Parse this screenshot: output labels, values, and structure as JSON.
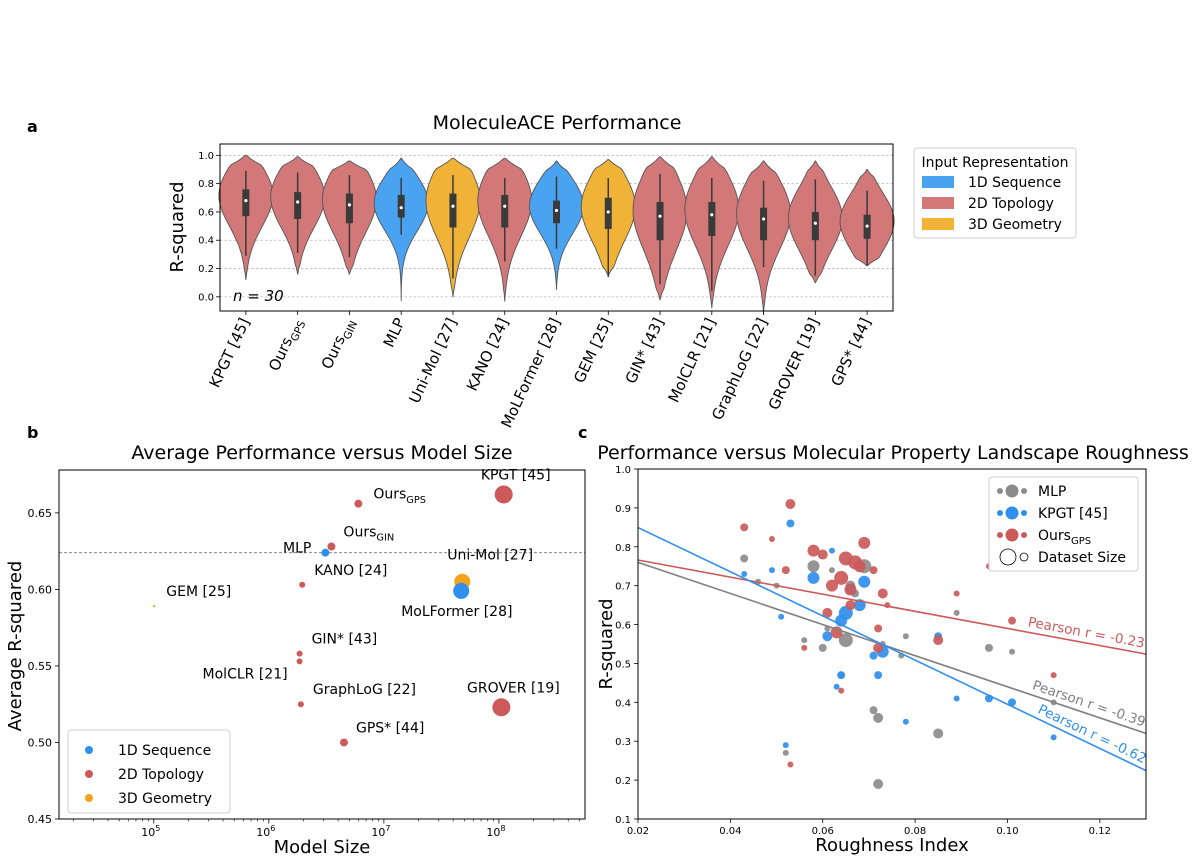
{
  "panel_a": {
    "letter": "a",
    "title": "MoleculeACE Performance",
    "ylabel": "R-squared",
    "annotation": "n = 30",
    "legend_title": "Input Representation",
    "legend": [
      {
        "label": "1D Sequence",
        "color": "#4aa3f0"
      },
      {
        "label": "2D Topology",
        "color": "#d37878"
      },
      {
        "label": "3D Geometry",
        "color": "#f1b238"
      }
    ],
    "yticks": [
      "0.0",
      "0.2",
      "0.4",
      "0.6",
      "0.8",
      "1.0"
    ]
  },
  "panel_b": {
    "letter": "b",
    "title": "Average Performance versus Model Size",
    "xlabel": "Model Size",
    "ylabel": "Average R-squared",
    "yticks": [
      "0.45",
      "0.50",
      "0.55",
      "0.60",
      "0.65"
    ],
    "xticks": [
      {
        "base": "10",
        "exp": "5",
        "v": 100000
      },
      {
        "base": "10",
        "exp": "6",
        "v": 1000000
      },
      {
        "base": "10",
        "exp": "7",
        "v": 10000000
      },
      {
        "base": "10",
        "exp": "8",
        "v": 100000000
      }
    ],
    "legend": [
      {
        "label": "1D Sequence",
        "color": "#2f8fec"
      },
      {
        "label": "2D Topology",
        "color": "#cc5a5a"
      },
      {
        "label": "3D Geometry",
        "color": "#f4a11c"
      }
    ]
  },
  "panel_c": {
    "letter": "c",
    "title": "Performance versus Molecular Property Landscape Roughness",
    "xlabel": "Roughness Index",
    "ylabel": "R-squared",
    "yticks": [
      "0.1",
      "0.2",
      "0.3",
      "0.4",
      "0.5",
      "0.6",
      "0.7",
      "0.8",
      "0.9",
      "1.0"
    ],
    "xticks": [
      "0.02",
      "0.04",
      "0.06",
      "0.08",
      "0.10",
      "0.12"
    ],
    "legend": [
      {
        "label": "MLP",
        "sub": "",
        "color": "#8c8c8c"
      },
      {
        "label": "KPGT [45]",
        "sub": "",
        "color": "#2f8fec"
      },
      {
        "label": "Ours",
        "sub": "GPS",
        "color": "#cc5a5a"
      },
      {
        "label": "Dataset Size",
        "sub": "",
        "color": "#ffffff"
      }
    ],
    "fit_labels": [
      "Pearson r = -0.23",
      "Pearson r = -0.39",
      "Pearson r = -0.62"
    ]
  },
  "chart_data": [
    {
      "type": "violin",
      "title": "MoleculeACE Performance",
      "ylabel": "R-squared",
      "ylim": [
        -0.1,
        1.08
      ],
      "n": 30,
      "series": [
        {
          "name": "KPGT [45]",
          "sub": "",
          "repr": "2D Topology",
          "median": 0.68,
          "q1": 0.57,
          "q3": 0.76,
          "wl": 0.29,
          "wh": 0.89,
          "mn": 0.12,
          "mx": 1.0
        },
        {
          "name": "Ours",
          "sub": "GPS",
          "repr": "2D Topology",
          "median": 0.67,
          "q1": 0.55,
          "q3": 0.74,
          "wl": 0.31,
          "wh": 0.88,
          "mn": 0.16,
          "mx": 0.99
        },
        {
          "name": "Ours",
          "sub": "GIN",
          "repr": "2D Topology",
          "median": 0.65,
          "q1": 0.52,
          "q3": 0.73,
          "wl": 0.28,
          "wh": 0.86,
          "mn": 0.16,
          "mx": 0.96
        },
        {
          "name": "MLP",
          "sub": "",
          "repr": "1D Sequence",
          "median": 0.63,
          "q1": 0.56,
          "q3": 0.72,
          "wl": 0.44,
          "wh": 0.84,
          "mn": -0.03,
          "mx": 0.98
        },
        {
          "name": "Uni-Mol [27]",
          "sub": "",
          "repr": "3D Geometry",
          "median": 0.64,
          "q1": 0.49,
          "q3": 0.73,
          "wl": 0.13,
          "wh": 0.86,
          "mn": 0.0,
          "mx": 0.98
        },
        {
          "name": "KANO [24]",
          "sub": "",
          "repr": "2D Topology",
          "median": 0.64,
          "q1": 0.49,
          "q3": 0.72,
          "wl": 0.25,
          "wh": 0.84,
          "mn": -0.03,
          "mx": 0.98
        },
        {
          "name": "MoLFormer [28]",
          "sub": "",
          "repr": "1D Sequence",
          "median": 0.61,
          "q1": 0.52,
          "q3": 0.68,
          "wl": 0.34,
          "wh": 0.85,
          "mn": 0.05,
          "mx": 0.96
        },
        {
          "name": "GEM [25]",
          "sub": "",
          "repr": "3D Geometry",
          "median": 0.6,
          "q1": 0.48,
          "q3": 0.7,
          "wl": 0.14,
          "wh": 0.84,
          "mn": 0.15,
          "mx": 0.97
        },
        {
          "name": "GIN* [43]",
          "sub": "",
          "repr": "2D Topology",
          "median": 0.57,
          "q1": 0.4,
          "q3": 0.67,
          "wl": 0.09,
          "wh": 0.87,
          "mn": -0.02,
          "mx": 0.99
        },
        {
          "name": "MolCLR [21]",
          "sub": "",
          "repr": "2D Topology",
          "median": 0.58,
          "q1": 0.43,
          "q3": 0.67,
          "wl": 0.04,
          "wh": 0.84,
          "mn": -0.08,
          "mx": 0.99
        },
        {
          "name": "GraphLoG [22]",
          "sub": "",
          "repr": "2D Topology",
          "median": 0.55,
          "q1": 0.4,
          "q3": 0.63,
          "wl": 0.21,
          "wh": 0.82,
          "mn": -0.12,
          "mx": 0.96
        },
        {
          "name": "GROVER [19]",
          "sub": "",
          "repr": "2D Topology",
          "median": 0.52,
          "q1": 0.4,
          "q3": 0.6,
          "wl": 0.15,
          "wh": 0.83,
          "mn": 0.1,
          "mx": 0.96
        },
        {
          "name": "GPS* [44]",
          "sub": "",
          "repr": "2D Topology",
          "median": 0.5,
          "q1": 0.41,
          "q3": 0.58,
          "wl": 0.22,
          "wh": 0.75,
          "mn": 0.22,
          "mx": 0.9
        }
      ]
    },
    {
      "type": "scatter",
      "title": "Average Performance versus Model Size",
      "xlabel": "Model Size",
      "ylabel": "Average R-squared",
      "xscale": "log",
      "xlim": [
        15000,
        560000000
      ],
      "ylim": [
        0.45,
        0.678
      ],
      "reference_line": 0.624,
      "points": [
        {
          "name": "KPGT [45]",
          "sub": "",
          "x": 110000000,
          "y": 0.662,
          "repr": "2D Topology",
          "r": 9,
          "anchor": "up"
        },
        {
          "name": "Ours",
          "sub": "GPS",
          "x": 6000000,
          "y": 0.656,
          "repr": "2D Topology",
          "r": 4,
          "anchor": "right"
        },
        {
          "name": "Ours",
          "sub": "GIN",
          "x": 3500000,
          "y": 0.628,
          "repr": "2D Topology",
          "r": 4,
          "anchor": "upright"
        },
        {
          "name": "MLP",
          "sub": "",
          "x": 3100000,
          "y": 0.624,
          "repr": "1D Sequence",
          "r": 4,
          "anchor": "left"
        },
        {
          "name": "KANO [24]",
          "sub": "",
          "x": 1950000,
          "y": 0.603,
          "repr": "2D Topology",
          "r": 3,
          "anchor": "upright"
        },
        {
          "name": "Uni-Mol [27]",
          "sub": "",
          "x": 48000000,
          "y": 0.605,
          "repr": "3D Geometry",
          "r": 8,
          "anchor": "upright2"
        },
        {
          "name": "MoLFormer [28]",
          "sub": "",
          "x": 47000000,
          "y": 0.599,
          "repr": "1D Sequence",
          "r": 8,
          "anchor": "below"
        },
        {
          "name": "GEM [25]",
          "sub": "",
          "x": 101000,
          "y": 0.589,
          "repr": "3D Geometry",
          "r": 1.2,
          "anchor": "upright"
        },
        {
          "name": "GIN* [43]",
          "sub": "",
          "x": 1850000,
          "y": 0.558,
          "repr": "2D Topology",
          "r": 3,
          "anchor": "upright"
        },
        {
          "name": "MolCLR [21]",
          "sub": "",
          "x": 1850000,
          "y": 0.553,
          "repr": "2D Topology",
          "r": 3,
          "anchor": "downleft"
        },
        {
          "name": "GraphLoG [22]",
          "sub": "",
          "x": 1900000,
          "y": 0.525,
          "repr": "2D Topology",
          "r": 3,
          "anchor": "upright"
        },
        {
          "name": "GROVER [19]",
          "sub": "",
          "x": 105000000,
          "y": 0.523,
          "repr": "2D Topology",
          "r": 9,
          "anchor": "up"
        },
        {
          "name": "GPS* [44]",
          "sub": "",
          "x": 4500000,
          "y": 0.5,
          "repr": "2D Topology",
          "r": 4,
          "anchor": "upright"
        }
      ]
    },
    {
      "type": "scatter",
      "title": "Performance versus Molecular Property Landscape Roughness",
      "xlabel": "Roughness Index",
      "ylabel": "R-squared",
      "xlim": [
        0.02,
        0.13
      ],
      "ylim": [
        0.1,
        1.0
      ],
      "fits": [
        {
          "name": "Ours GPS",
          "slope": -2.2,
          "intercept": 0.81,
          "label": "Pearson r = -0.23"
        },
        {
          "name": "MLP",
          "slope": -4.0,
          "intercept": 0.84,
          "label": "Pearson r = -0.39"
        },
        {
          "name": "KPGT [45]",
          "slope": -5.68,
          "intercept": 0.963,
          "label": "Pearson r = -0.62"
        }
      ],
      "series": [
        {
          "name": "MLP",
          "points": [
            [
              0.043,
              0.77,
              4
            ],
            [
              0.046,
              0.71,
              3
            ],
            [
              0.05,
              0.7,
              3
            ],
            [
              0.052,
              0.27,
              3
            ],
            [
              0.056,
              0.56,
              3
            ],
            [
              0.058,
              0.75,
              6
            ],
            [
              0.06,
              0.54,
              4
            ],
            [
              0.061,
              0.59,
              3
            ],
            [
              0.062,
              0.74,
              3
            ],
            [
              0.064,
              0.47,
              3
            ],
            [
              0.065,
              0.56,
              7
            ],
            [
              0.066,
              0.7,
              5
            ],
            [
              0.067,
              0.68,
              4
            ],
            [
              0.069,
              0.75,
              7
            ],
            [
              0.071,
              0.38,
              4
            ],
            [
              0.072,
              0.36,
              5
            ],
            [
              0.072,
              0.19,
              5
            ],
            [
              0.073,
              0.55,
              3
            ],
            [
              0.077,
              0.52,
              3
            ],
            [
              0.078,
              0.57,
              3
            ],
            [
              0.085,
              0.32,
              5
            ],
            [
              0.089,
              0.63,
              3
            ],
            [
              0.096,
              0.54,
              4
            ],
            [
              0.101,
              0.53,
              3
            ],
            [
              0.11,
              0.4,
              3
            ]
          ]
        },
        {
          "name": "KPGT [45]",
          "points": [
            [
              0.043,
              0.73,
              3
            ],
            [
              0.049,
              0.74,
              3
            ],
            [
              0.051,
              0.62,
              3
            ],
            [
              0.052,
              0.29,
              3
            ],
            [
              0.053,
              0.86,
              4
            ],
            [
              0.058,
              0.72,
              6
            ],
            [
              0.061,
              0.57,
              5
            ],
            [
              0.062,
              0.79,
              3
            ],
            [
              0.063,
              0.44,
              3
            ],
            [
              0.064,
              0.47,
              4
            ],
            [
              0.064,
              0.61,
              6
            ],
            [
              0.065,
              0.63,
              7
            ],
            [
              0.066,
              0.69,
              5
            ],
            [
              0.068,
              0.65,
              6
            ],
            [
              0.069,
              0.71,
              6
            ],
            [
              0.071,
              0.52,
              4
            ],
            [
              0.072,
              0.47,
              4
            ],
            [
              0.073,
              0.53,
              6
            ],
            [
              0.078,
              0.35,
              3
            ],
            [
              0.085,
              0.57,
              4
            ],
            [
              0.089,
              0.41,
              3
            ],
            [
              0.096,
              0.41,
              4
            ],
            [
              0.101,
              0.4,
              4
            ],
            [
              0.11,
              0.31,
              3
            ]
          ]
        },
        {
          "name": "Ours GPS",
          "points": [
            [
              0.043,
              0.85,
              4
            ],
            [
              0.049,
              0.82,
              3
            ],
            [
              0.052,
              0.74,
              4
            ],
            [
              0.053,
              0.91,
              5
            ],
            [
              0.053,
              0.24,
              3
            ],
            [
              0.056,
              0.54,
              3
            ],
            [
              0.058,
              0.79,
              6
            ],
            [
              0.06,
              0.78,
              5
            ],
            [
              0.061,
              0.63,
              5
            ],
            [
              0.062,
              0.7,
              6
            ],
            [
              0.063,
              0.58,
              6
            ],
            [
              0.064,
              0.43,
              3
            ],
            [
              0.064,
              0.72,
              7
            ],
            [
              0.065,
              0.77,
              7
            ],
            [
              0.066,
              0.65,
              5
            ],
            [
              0.066,
              0.69,
              6
            ],
            [
              0.067,
              0.76,
              7
            ],
            [
              0.068,
              0.75,
              6
            ],
            [
              0.069,
              0.81,
              6
            ],
            [
              0.071,
              0.74,
              4
            ],
            [
              0.072,
              0.59,
              4
            ],
            [
              0.073,
              0.68,
              5
            ],
            [
              0.074,
              0.65,
              3
            ],
            [
              0.072,
              0.54,
              5
            ],
            [
              0.085,
              0.56,
              5
            ],
            [
              0.089,
              0.68,
              3
            ],
            [
              0.096,
              0.75,
              3
            ],
            [
              0.101,
              0.61,
              4
            ],
            [
              0.11,
              0.47,
              3
            ]
          ]
        }
      ]
    }
  ]
}
